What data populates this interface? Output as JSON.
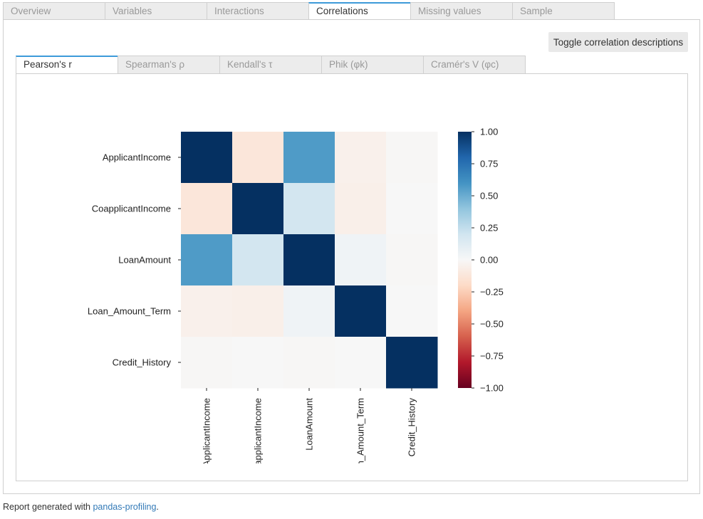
{
  "tabs": [
    {
      "label": "Overview",
      "active": false
    },
    {
      "label": "Variables",
      "active": false
    },
    {
      "label": "Interactions",
      "active": false
    },
    {
      "label": "Correlations",
      "active": true
    },
    {
      "label": "Missing values",
      "active": false
    },
    {
      "label": "Sample",
      "active": false
    }
  ],
  "toggle_button": {
    "label": "Toggle correlation descriptions"
  },
  "subtabs": [
    {
      "label": "Pearson's r",
      "active": true
    },
    {
      "label": "Spearman's ρ",
      "active": false
    },
    {
      "label": "Kendall's τ",
      "active": false
    },
    {
      "label": "Phik (φk)",
      "active": false
    },
    {
      "label": "Cramér's V (φc)",
      "active": false
    }
  ],
  "chart_data": {
    "type": "heatmap",
    "title": "",
    "row_labels": [
      "ApplicantIncome",
      "CoapplicantIncome",
      "LoanAmount",
      "Loan_Amount_Term",
      "Credit_History"
    ],
    "col_labels": [
      "ApplicantIncome",
      "CoapplicantIncome",
      "LoanAmount",
      "Loan_Amount_Term",
      "Credit_History"
    ],
    "values": [
      [
        1.0,
        -0.12,
        0.57,
        -0.05,
        -0.01
      ],
      [
        -0.12,
        1.0,
        0.19,
        -0.06,
        0.0
      ],
      [
        0.57,
        0.19,
        1.0,
        0.04,
        -0.01
      ],
      [
        -0.05,
        -0.06,
        0.04,
        1.0,
        0.0
      ],
      [
        -0.01,
        0.0,
        -0.01,
        0.0,
        1.0
      ]
    ],
    "colorbar": {
      "range": [
        -1.0,
        1.0
      ],
      "ticks": [
        1.0,
        0.75,
        0.5,
        0.25,
        0.0,
        -0.25,
        -0.5,
        -0.75,
        -1.0
      ],
      "tick_labels": [
        "1.00",
        "0.75",
        "0.50",
        "0.25",
        "0.00",
        "−0.25",
        "−0.50",
        "−0.75",
        "−1.00"
      ],
      "colormap": "RdBu",
      "colors": [
        "#67001f",
        "#b2182b",
        "#d6604d",
        "#f4a582",
        "#fddbc7",
        "#f7f7f7",
        "#d1e5f0",
        "#92c5de",
        "#4393c3",
        "#2166ac",
        "#053061"
      ]
    }
  },
  "footer": {
    "prefix": "Report generated with ",
    "link_text": "pandas-profiling",
    "suffix": "."
  }
}
